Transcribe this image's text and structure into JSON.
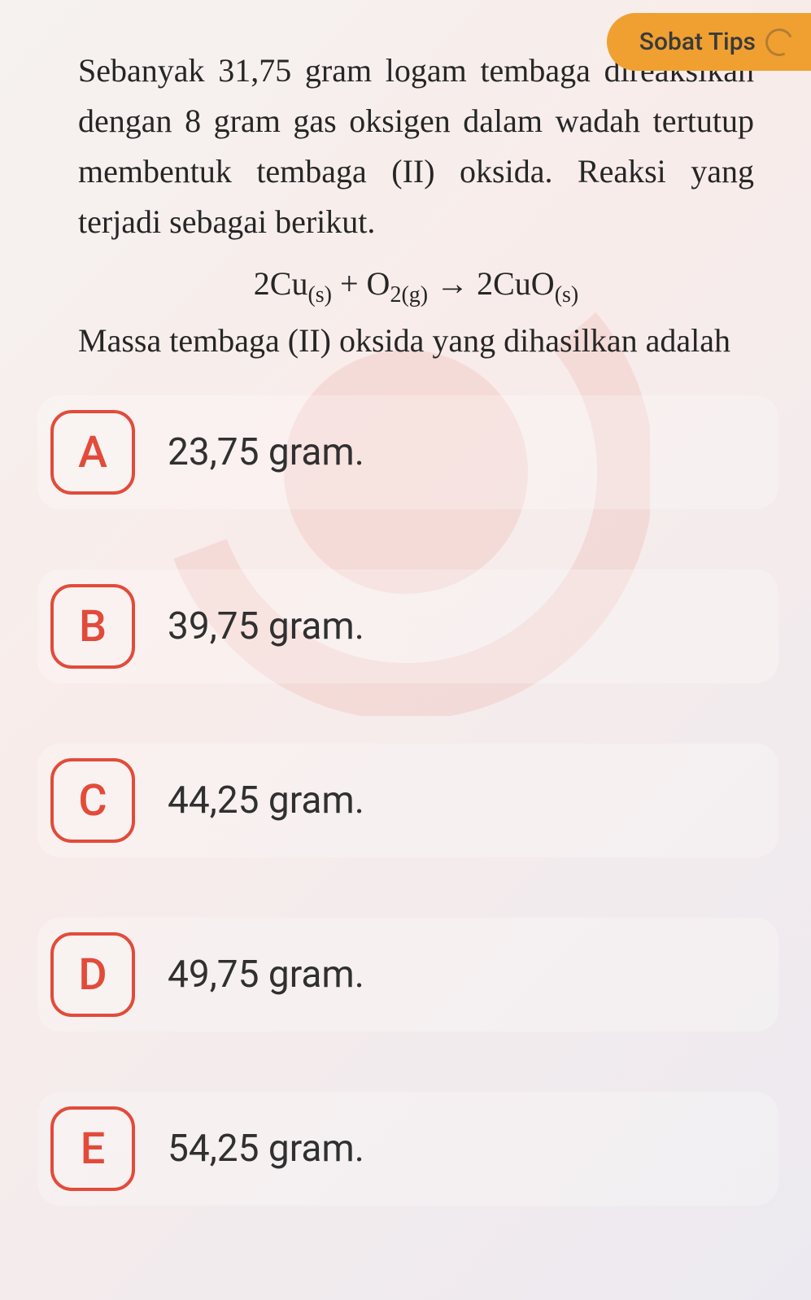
{
  "badge": {
    "label": "Sobat Tips"
  },
  "question": {
    "para1": "Sebanyak 31,75 gram logam tembaga direaksikan dengan 8 gram gas oksigen dalam wadah tertutup membentuk tembaga (II) oksida. Reaksi yang terjadi sebagai berikut.",
    "equation_html": "2Cu<sub class=\"subsup\">(s)</sub> + O<sub class=\"subsup\">2(g)</sub> → 2CuO<sub class=\"subsup\">(s)</sub>",
    "para2": "Massa tembaga (II) oksida yang dihasilkan adalah"
  },
  "options": [
    {
      "letter": "A",
      "text": "23,75 gram."
    },
    {
      "letter": "B",
      "text": "39,75 gram."
    },
    {
      "letter": "C",
      "text": "44,25 gram."
    },
    {
      "letter": "D",
      "text": "49,75 gram."
    },
    {
      "letter": "E",
      "text": "54,25 gram."
    }
  ],
  "colors": {
    "accent": "#e24b3a",
    "badge_bg": "#f0a030",
    "text": "#262626"
  }
}
